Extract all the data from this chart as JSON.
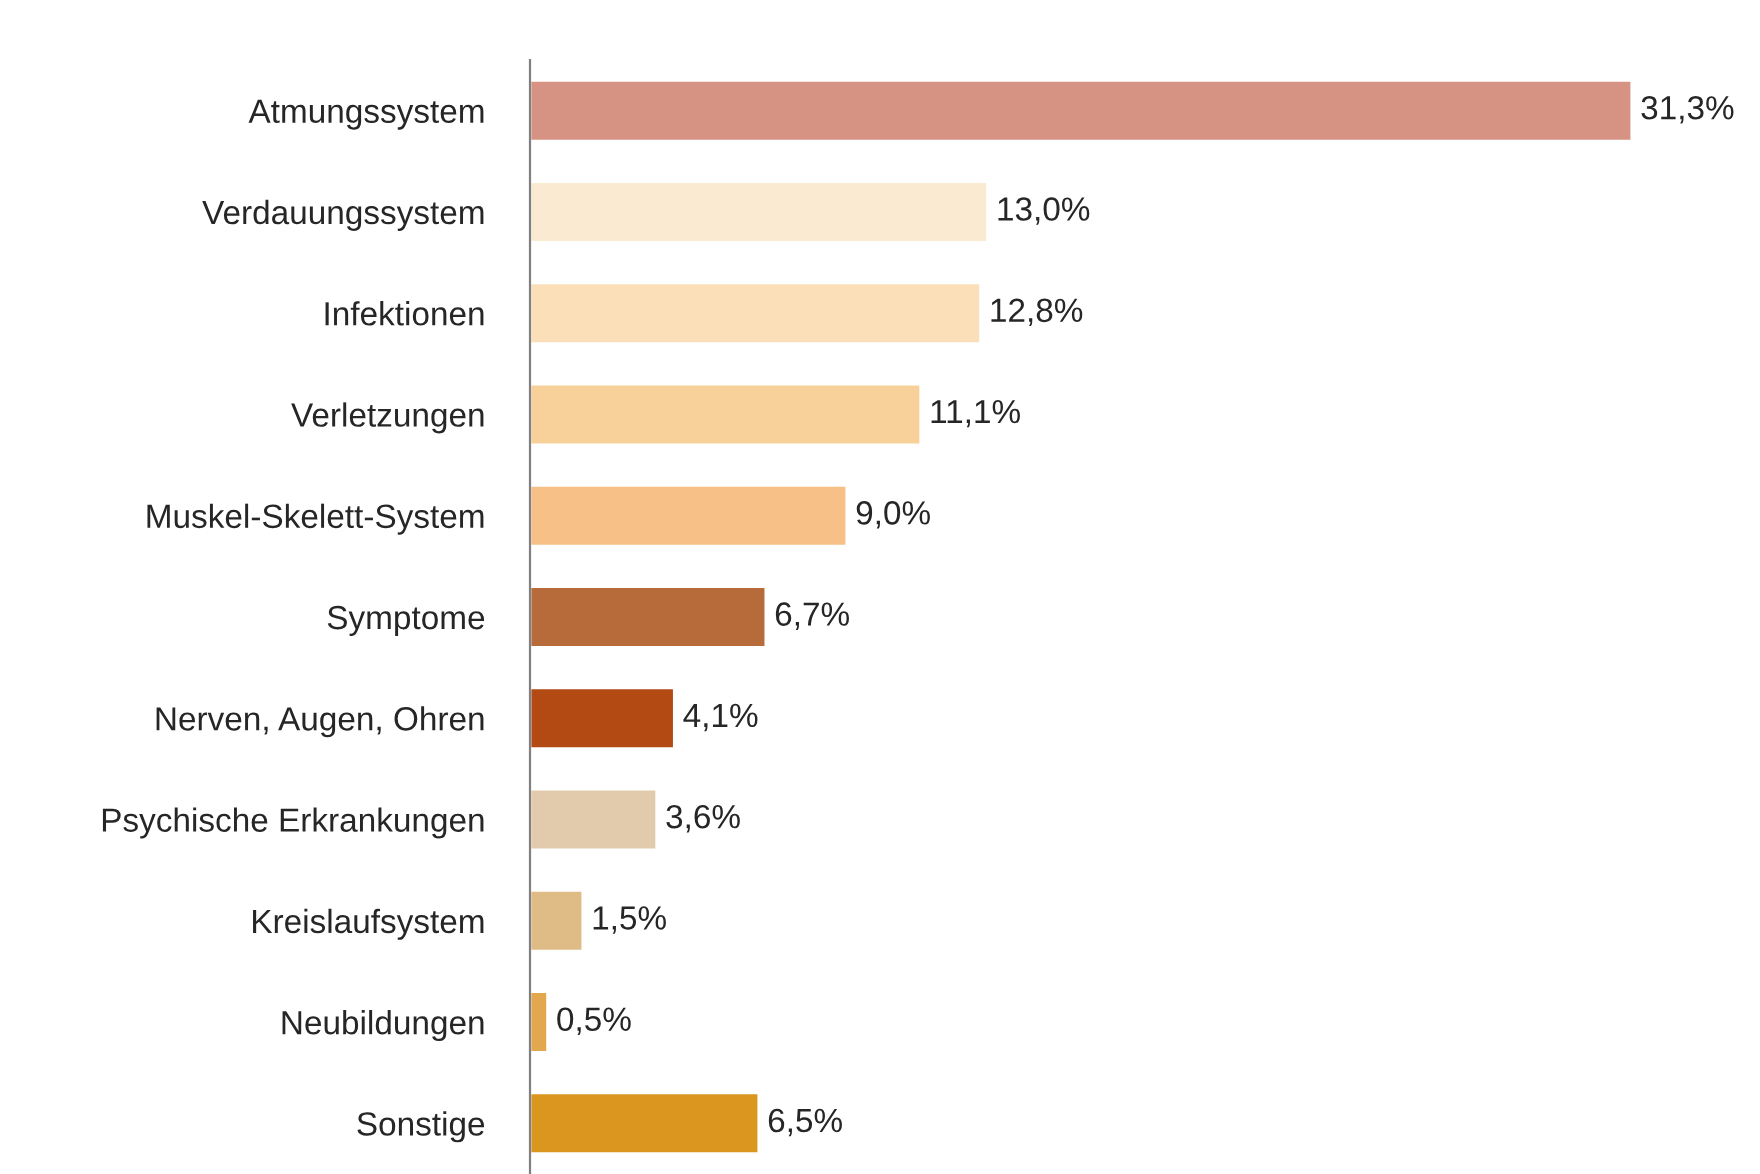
{
  "chart_data": {
    "type": "bar",
    "orientation": "horizontal",
    "categories": [
      "Atmungssystem",
      "Verdauungssystem",
      "Infektionen",
      "Verletzungen",
      "Muskel-Skelett-System",
      "Symptome",
      "Nerven, Augen, Ohren",
      "Psychische Erkrankungen",
      "Kreislaufsystem",
      "Neubildungen",
      "Sonstige"
    ],
    "values": [
      31.3,
      13.0,
      12.8,
      11.1,
      9.0,
      6.7,
      4.1,
      3.6,
      1.5,
      0.5,
      6.5
    ],
    "value_labels": [
      "31,3%",
      "13,0%",
      "12,8%",
      "11,1%",
      "9,0%",
      "6,7%",
      "4,1%",
      "3,6%",
      "1,5%",
      "0,5%",
      "6,5%"
    ],
    "colors": [
      "#d69282",
      "#fbead2",
      "#fadfb8",
      "#f8d09a",
      "#f6c087",
      "#b86b3a",
      "#b34a14",
      "#e2cbad",
      "#dfbb86",
      "#e3a84e",
      "#da961f"
    ],
    "grid": false,
    "legend": false
  }
}
